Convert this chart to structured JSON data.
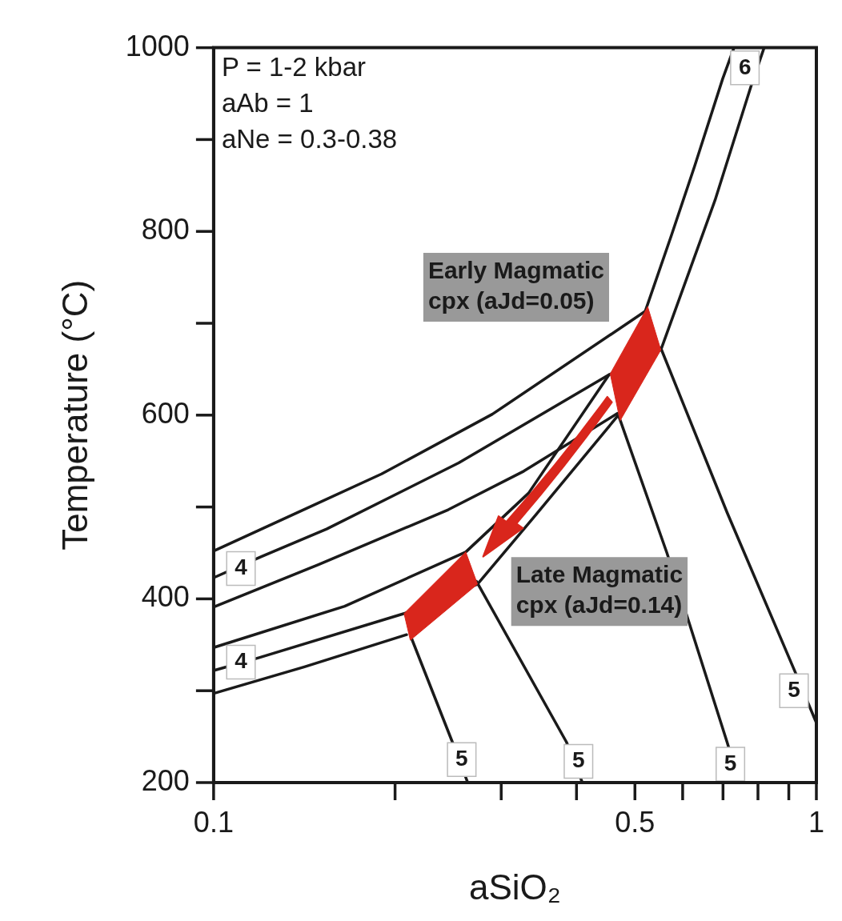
{
  "chart_data": {
    "type": "line",
    "xlabel": "aSiO₂",
    "ylabel": "Temperature (°C)",
    "log": "x",
    "marker": "none",
    "line_style": "solid",
    "xlim": [
      0.1,
      1
    ],
    "xticks": [
      0.1,
      0.5,
      1
    ],
    "ylim": [
      200,
      1000
    ],
    "yticks": [
      200,
      400,
      600,
      800,
      1000
    ],
    "series": [
      {
        "type": "line",
        "color": "#1a1a1a",
        "x": [
          0.1,
          0.14,
          0.19,
          0.29,
          0.52,
          0.575,
          0.628,
          0.699,
          0.73
        ],
        "values": [
          452,
          496,
          536,
          601,
          713,
          796,
          871,
          966,
          1000
        ]
      },
      {
        "type": "line",
        "color": "#1a1a1a",
        "x": [
          0.1,
          0.12,
          0.154,
          0.255,
          0.453
        ],
        "values": [
          423,
          446,
          476,
          548,
          644
        ]
      },
      {
        "type": "line",
        "color": "#1a1a1a",
        "x": [
          0.1,
          0.149,
          0.245,
          0.327,
          0.468
        ],
        "values": [
          391,
          437,
          497,
          539,
          602
        ]
      },
      {
        "type": "line",
        "color": "#1a1a1a",
        "x": [
          0.1,
          0.165,
          0.262,
          0.333,
          0.453,
          0.552,
          0.679,
          0.779,
          0.819
        ],
        "values": [
          347,
          392,
          451,
          515,
          644,
          671,
          834,
          958,
          1000
        ]
      },
      {
        "type": "line",
        "color": "#1a1a1a",
        "x": [
          0.1,
          0.119,
          0.207,
          0.274,
          0.342,
          0.468
        ],
        "values": [
          322,
          336,
          384,
          416,
          491,
          599
        ]
      },
      {
        "type": "line",
        "color": "#1a1a1a",
        "x": [
          0.1,
          0.1415,
          0.209
        ],
        "values": [
          297,
          326,
          361
        ]
      },
      {
        "type": "line",
        "color": "#1a1a1a",
        "x": [
          0.213,
          0.249,
          0.264
        ],
        "values": [
          357,
          244,
          200
        ]
      },
      {
        "type": "line",
        "color": "#1a1a1a",
        "x": [
          0.273,
          0.385,
          0.409
        ],
        "values": [
          419,
          244,
          200
        ]
      },
      {
        "type": "line",
        "color": "#1a1a1a",
        "x": [
          0.47,
          0.565,
          0.711,
          0.745
        ],
        "values": [
          599,
          450,
          244,
          200
        ]
      },
      {
        "type": "line",
        "color": "#1a1a1a",
        "x": [
          0.552,
          0.711,
          0.924,
          1
        ],
        "values": [
          673,
          494,
          319,
          265
        ]
      },
      {
        "type": "area",
        "color": "#d9261c",
        "x": [
          0.525,
          0.552,
          0.4725,
          0.455,
          0.525
        ],
        "values": [
          718,
          671,
          594,
          645,
          718
        ]
      },
      {
        "type": "area",
        "color": "#d9261c",
        "x": [
          0.262,
          0.274,
          0.212,
          0.207,
          0.262
        ],
        "values": [
          451,
          416,
          355,
          384,
          451
        ]
      }
    ],
    "annotations": [
      "P = 1-2 kbar",
      "aAb = 1",
      "aNe = 0.3-0.38",
      "Early Magmatic\ncpx (aJd=0.05)",
      "Late Magmatic\ncpx (aJd=0.14)",
      {
        "text": "4",
        "x": 0.111,
        "y": 433
      },
      {
        "text": "4",
        "x": 0.111,
        "y": 331
      },
      {
        "text": "5",
        "x": 0.258,
        "y": 225
      },
      {
        "text": "5",
        "x": 0.403,
        "y": 223
      },
      {
        "text": "5",
        "x": 0.72,
        "y": 220
      },
      {
        "text": "5",
        "x": 0.918,
        "y": 300
      },
      {
        "text": "6",
        "x": 0.761,
        "y": 978
      }
    ]
  }
}
